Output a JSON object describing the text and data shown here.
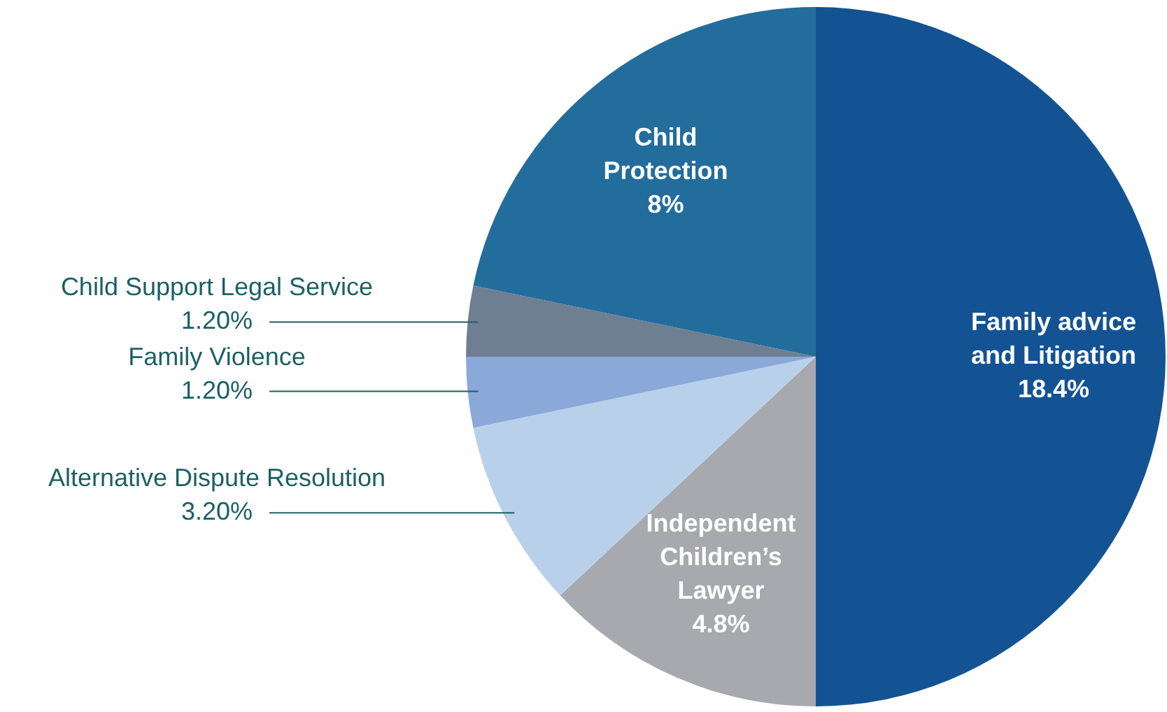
{
  "chart_data": {
    "type": "pie",
    "categories": [
      "Family advice and Litigation",
      "Independent Children’s Lawyer",
      "Alternative Dispute Resolution",
      "Family Violence",
      "Child Support Legal Service",
      "Child Protection"
    ],
    "values": [
      18.4,
      4.8,
      3.2,
      1.2,
      1.2,
      8
    ],
    "value_labels": [
      "18.4%",
      "4.8%",
      "3.20%",
      "1.20%",
      "1.20%",
      "8%"
    ],
    "colors": [
      "#135393",
      "#a7a9ae",
      "#b9d0ea",
      "#8aa8d8",
      "#6e7f91",
      "#236d9d"
    ],
    "legend": false
  }
}
